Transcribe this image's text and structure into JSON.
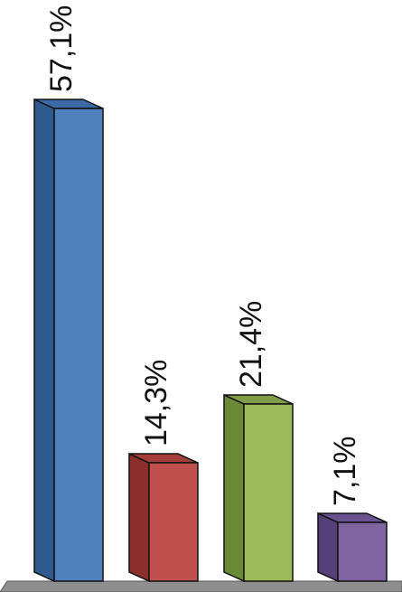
{
  "chart_data": {
    "type": "bar",
    "style": "3d",
    "categories": [
      "",
      "",
      "",
      ""
    ],
    "values": [
      57.1,
      14.3,
      21.4,
      7.1
    ],
    "labels": [
      "57,1%",
      "14,3%",
      "21,4%",
      "7,1%"
    ],
    "unit": "%",
    "ylim": [
      0,
      57.1
    ],
    "grid": false,
    "legend": "none",
    "colors": {
      "series": [
        "#4f81bd",
        "#c0504d",
        "#9bbb59",
        "#8064a2"
      ],
      "side": [
        "#2f5a8f",
        "#8a2f2c",
        "#6b8a36",
        "#56407a"
      ],
      "top": [
        "#3b6aa6",
        "#a53e3b",
        "#7f9d47",
        "#6a5190"
      ],
      "floor": "#8e8e8e",
      "floor_edge": "#555555"
    }
  }
}
